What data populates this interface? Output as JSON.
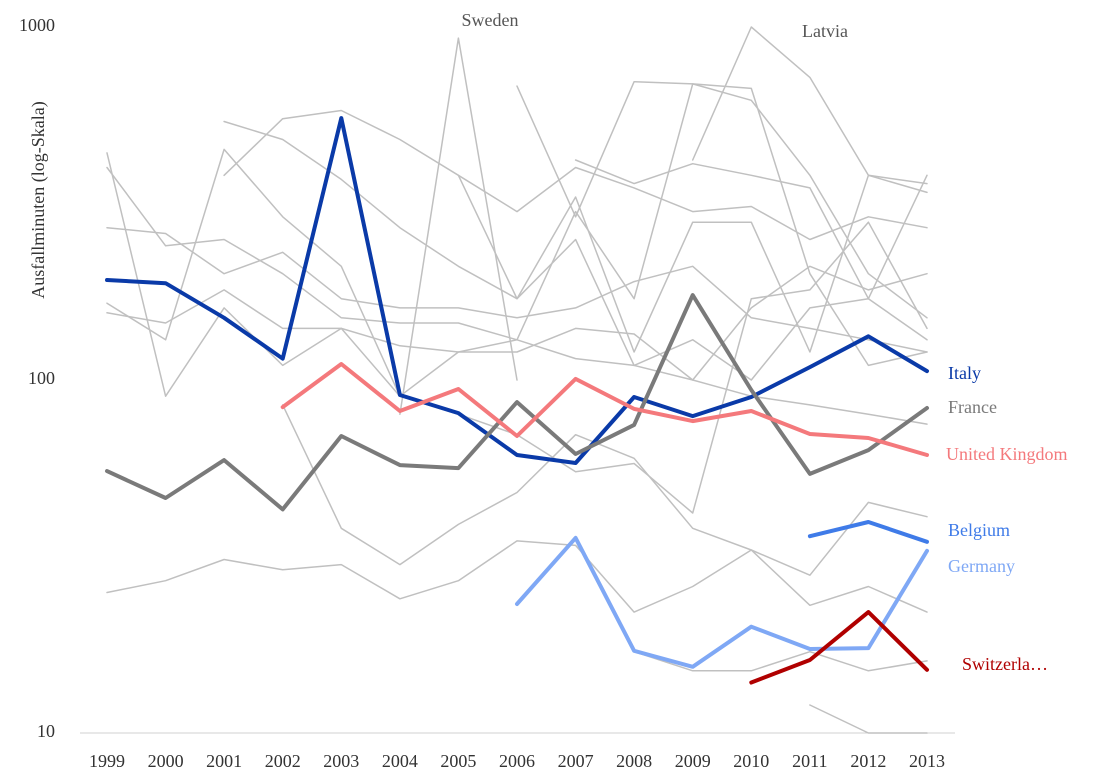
{
  "chart_data": {
    "type": "line",
    "y_label": "Ausfallminuten (log-Skala)",
    "log_y": true,
    "ylim": [
      10,
      1000
    ],
    "yticks": [
      10,
      100,
      1000
    ],
    "categories": [
      "1999",
      "2000",
      "2001",
      "2002",
      "2003",
      "2004",
      "2005",
      "2006",
      "2007",
      "2008",
      "2009",
      "2010",
      "2011",
      "2012",
      "2013"
    ],
    "series": [
      {
        "color": "#c0c0c0",
        "values": [
          400,
          240,
          250,
          200,
          150,
          145,
          145,
          130,
          115,
          110,
          100,
          90,
          85,
          80,
          75
        ]
      },
      {
        "color": "#c0c0c0",
        "values": [
          270,
          260,
          200,
          230,
          170,
          160,
          160,
          150,
          160,
          190,
          210,
          150,
          140,
          130,
          120
        ]
      },
      {
        "color": "#c0c0c0",
        "values": [
          165,
          130,
          450,
          290,
          210,
          90,
          120,
          130,
          300,
          170,
          690,
          670,
          200,
          110,
          120
        ]
      },
      {
        "color": "#c0c0c0",
        "values": [
          null,
          null,
          540,
          480,
          370,
          270,
          210,
          170,
          250,
          110,
          130,
          100,
          160,
          170,
          130
        ]
      },
      {
        "color": "#c0c0c0",
        "values": [
          null,
          null,
          380,
          550,
          580,
          480,
          380,
          300,
          400,
          350,
          300,
          310,
          250,
          290,
          270
        ]
      },
      {
        "color": "#c0c0c0",
        "values": [
          155,
          145,
          180,
          140,
          140,
          125,
          120,
          120,
          140,
          135,
          100,
          160,
          210,
          180,
          200
        ]
      },
      {
        "color": "#c0c0c0",
        "values": [
          25,
          27,
          31,
          29,
          30,
          24,
          27,
          35,
          34,
          22,
          26,
          33,
          28,
          45,
          41
        ]
      },
      {
        "color": "#c0c0c0",
        "values": [
          null,
          null,
          null,
          null,
          null,
          null,
          380,
          170,
          330,
          120,
          280,
          280,
          120,
          380,
          340
        ]
      },
      {
        "color": "#c0c0c0",
        "values": [
          null,
          null,
          null,
          null,
          null,
          null,
          null,
          680,
          290,
          700,
          690,
          620,
          380,
          200,
          150
        ]
      },
      {
        "color": "#c0c0c0",
        "values": [
          null,
          null,
          null,
          85,
          38,
          30,
          39,
          48,
          70,
          60,
          38,
          33,
          23,
          26,
          22
        ]
      },
      {
        "color": "#c0c0c0",
        "values": [
          null,
          null,
          null,
          null,
          null,
          null,
          null,
          null,
          420,
          360,
          410,
          380,
          350,
          170,
          380
        ]
      },
      {
        "color": "#c0c0c0",
        "values": [
          440,
          90,
          160,
          110,
          140,
          90,
          80,
          70,
          55,
          58,
          42,
          170,
          180,
          280,
          140
        ]
      },
      {
        "color": "#c0c0c0",
        "values": [
          null,
          null,
          null,
          null,
          null,
          null,
          null,
          null,
          null,
          null,
          null,
          null,
          12,
          10,
          10
        ]
      },
      {
        "color": "#c0c0c0",
        "values": [
          null,
          null,
          null,
          null,
          null,
          null,
          null,
          null,
          null,
          17,
          15,
          15,
          17,
          15,
          16
        ]
      },
      {
        "name": "Sweden",
        "color": "#c0c0c0",
        "values": [
          null,
          null,
          null,
          null,
          null,
          80,
          930,
          100,
          null,
          null,
          null,
          null,
          null,
          null,
          null
        ]
      },
      {
        "name": "Latvia",
        "color": "#c0c0c0",
        "values": [
          null,
          null,
          null,
          null,
          null,
          null,
          null,
          null,
          null,
          null,
          420,
          1000,
          720,
          380,
          360
        ]
      },
      {
        "name": "Italy",
        "color": "#0a3aa8",
        "values": [
          192,
          188,
          150,
          115,
          552,
          90.7,
          80.6,
          61.3,
          58.2,
          89.5,
          79,
          89.5,
          108.8,
          133,
          106
        ]
      },
      {
        "name": "France",
        "color": "#7a7a7a",
        "values": [
          55.2,
          46.3,
          59.3,
          43,
          69.4,
          57.4,
          56.3,
          86.6,
          61.7,
          74.6,
          174,
          93.7,
          54.2,
          63.3,
          83.3
        ]
      },
      {
        "name": "United Kingdom",
        "color": "#f4797c",
        "values": [
          null,
          null,
          null,
          83.8,
          111,
          81.7,
          94.3,
          69.4,
          100.7,
          82.8,
          76.5,
          81.7,
          70.3,
          68.5,
          61.3
        ]
      },
      {
        "name": "Belgium",
        "color": "#3f7be8",
        "values": [
          null,
          null,
          null,
          null,
          null,
          null,
          null,
          null,
          null,
          null,
          null,
          null,
          36.1,
          39.6,
          34.8
        ]
      },
      {
        "name": "Germany",
        "color": "#7fa8f5",
        "values": [
          null,
          null,
          null,
          null,
          null,
          null,
          null,
          23.2,
          35.7,
          17.1,
          15.4,
          20,
          17.3,
          17.4,
          32.8
        ]
      },
      {
        "name": "Switzerla…",
        "color": "#b00000",
        "values": [
          null,
          null,
          null,
          null,
          null,
          null,
          null,
          null,
          null,
          null,
          null,
          13.9,
          16.1,
          22,
          15.1
        ]
      }
    ]
  }
}
